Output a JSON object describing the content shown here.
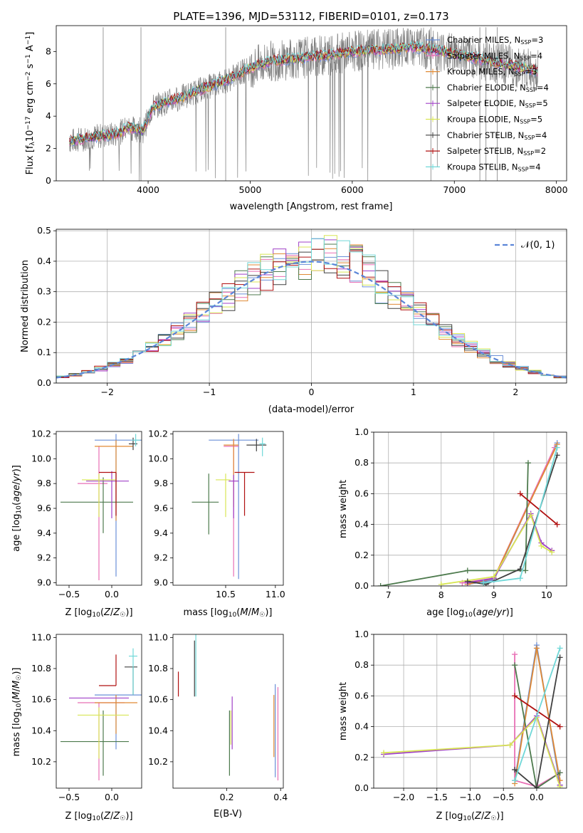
{
  "colors": {
    "Chabrier MILES": "#6a8fd8",
    "Salpeter MILES": "#e86fb5",
    "Kroupa MILES": "#e08a35",
    "Chabrier ELODIE": "#4d7a4d",
    "Salpeter ELODIE": "#a040c8",
    "Kroupa ELODIE": "#d8e655",
    "Chabrier STELIB": "#404040",
    "Salpeter STELIB": "#b01010",
    "Kroupa STELIB": "#70d8d8",
    "data": "#808080",
    "normal": "#5b86d8"
  },
  "chart_data": [
    {
      "id": "spectrum",
      "type": "line",
      "title": "PLATE=1396, MJD=53112, FIBERID=0101, z=0.173",
      "xlabel": "wavelength [Angstrom, rest frame]",
      "ylabel": "Flux [f$_\\lambda$10$^{-17}$ erg cm$^{-2}$ s$^{-1}$ A$^{-1}$]",
      "ylabel_parts": {
        "a": "Flux [f",
        "b": "λ",
        "c": "10",
        "d": "−17",
        "e": " erg cm",
        "f": "−2",
        "g": " s",
        "h": "−1",
        "i": " A",
        "j": "−1",
        "k": "]"
      },
      "xlim": [
        3100,
        8100
      ],
      "ylim": [
        0,
        9.6
      ],
      "xticks": [
        4000,
        5000,
        6000,
        7000,
        8000
      ],
      "yticks": [
        0,
        2,
        4,
        6,
        8
      ],
      "legend": [
        {
          "name": "Chabrier MILES",
          "nssp": "3"
        },
        {
          "name": "Salpeter MILES",
          "nssp": "4"
        },
        {
          "name": "Kroupa MILES",
          "nssp": "3"
        },
        {
          "name": "Chabrier ELODIE",
          "nssp": "4"
        },
        {
          "name": "Salpeter ELODIE",
          "nssp": "5"
        },
        {
          "name": "Kroupa ELODIE",
          "nssp": "5"
        },
        {
          "name": "Chabrier STELIB",
          "nssp": "4"
        },
        {
          "name": "Salpeter STELIB",
          "nssp": "2"
        },
        {
          "name": "Kroupa STELIB",
          "nssp": "4"
        }
      ],
      "legend_sub": "SSP",
      "legend_prefix": "N",
      "model_continuum": [
        [
          3230,
          2.45
        ],
        [
          3500,
          2.75
        ],
        [
          3700,
          2.9
        ],
        [
          3800,
          3.3
        ],
        [
          3950,
          3.1
        ],
        [
          4050,
          4.6
        ],
        [
          4300,
          5.1
        ],
        [
          4500,
          5.6
        ],
        [
          4800,
          6.3
        ],
        [
          5000,
          7.0
        ],
        [
          5200,
          7.4
        ],
        [
          5500,
          7.6
        ],
        [
          5800,
          7.8
        ],
        [
          6000,
          8.0
        ],
        [
          6300,
          8.1
        ],
        [
          6600,
          8.3
        ],
        [
          6900,
          8.0
        ],
        [
          7200,
          7.6
        ],
        [
          7500,
          7.2
        ],
        [
          7820,
          6.8
        ]
      ],
      "data_range": [
        3230,
        7820
      ]
    },
    {
      "id": "residual-hist",
      "type": "line",
      "xlabel": "(data-model)/error",
      "ylabel": "Normed distribution",
      "xlim": [
        -2.5,
        2.5
      ],
      "ylim": [
        0,
        0.505
      ],
      "xticks": [
        -2,
        -1,
        0,
        1,
        2
      ],
      "yticks": [
        0.0,
        0.1,
        0.2,
        0.3,
        0.4,
        0.5
      ],
      "legend": "𝒩(0, 1)",
      "bins": 40,
      "grid": true
    },
    {
      "id": "age-vs-Z",
      "type": "scatter",
      "xlabel": "Z [log10(Z/Z☉)]",
      "ylabel": "age  [log10(age/yr)]",
      "xlim": [
        -0.65,
        0.35
      ],
      "ylim": [
        8.98,
        10.22
      ],
      "xticks": [
        -0.5,
        0.0
      ],
      "yticks": [
        9.0,
        9.2,
        9.4,
        9.6,
        9.8,
        10.0,
        10.2
      ],
      "points": [
        {
          "model": "Chabrier MILES",
          "x": 0.05,
          "y": 10.15,
          "xerr": [
            0.25,
            0.3
          ],
          "yerr": [
            1.1,
            0.05
          ]
        },
        {
          "model": "Salpeter MILES",
          "x": -0.15,
          "y": 9.8,
          "xerr": [
            0.25,
            0.1
          ],
          "yerr": [
            0.78,
            0.3
          ]
        },
        {
          "model": "Kroupa MILES",
          "x": 0.05,
          "y": 10.1,
          "xerr": [
            0.25,
            0.2
          ],
          "yerr": [
            0.6,
            0.05
          ]
        },
        {
          "model": "Chabrier ELODIE",
          "x": -0.1,
          "y": 9.65,
          "xerr": [
            0.5,
            0.35
          ],
          "yerr": [
            0.25,
            0.2
          ]
        },
        {
          "model": "Salpeter ELODIE",
          "x": 0.0,
          "y": 9.82,
          "xerr": [
            0.3,
            0.2
          ],
          "yerr": [
            0.3,
            0.08
          ]
        },
        {
          "model": "Kroupa ELODIE",
          "x": -0.15,
          "y": 9.83,
          "xerr": [
            0.2,
            0.2
          ],
          "yerr": [
            0.3,
            0.05
          ]
        },
        {
          "model": "Chabrier STELIB",
          "x": 0.25,
          "y": 10.12,
          "xerr": [
            0.05,
            0.05
          ],
          "yerr": [
            0.05,
            0.05
          ]
        },
        {
          "model": "Salpeter STELIB",
          "x": 0.05,
          "y": 9.89,
          "xerr": [
            0.2,
            0.0
          ],
          "yerr": [
            0.35,
            0.0
          ]
        },
        {
          "model": "Kroupa STELIB",
          "x": 0.28,
          "y": 10.15,
          "xerr": [
            0.05,
            0.05
          ],
          "yerr": [
            0.05,
            0.05
          ]
        }
      ]
    },
    {
      "id": "age-vs-mass",
      "type": "scatter",
      "xlabel": "mass [log10(M/M☉)]",
      "ylabel": "",
      "xlim": [
        9.97,
        11.08
      ],
      "ylim": [
        8.98,
        10.22
      ],
      "xticks": [
        10.5,
        11.0
      ],
      "yticks": [
        9.0,
        9.2,
        9.4,
        9.6,
        9.8,
        10.0,
        10.2
      ],
      "points": [
        {
          "model": "Chabrier MILES",
          "x": 10.63,
          "y": 10.15,
          "xerr": [
            0.3,
            0.2
          ],
          "yerr": [
            1.12,
            0.05
          ]
        },
        {
          "model": "Salpeter MILES",
          "x": 10.58,
          "y": 10.1,
          "xerr": [
            0.1,
            0.05
          ],
          "yerr": [
            1.05,
            0.05
          ]
        },
        {
          "model": "Kroupa MILES",
          "x": 10.58,
          "y": 10.11,
          "xerr": [
            0.1,
            0.05
          ],
          "yerr": [
            0.5,
            0.05
          ]
        },
        {
          "model": "Chabrier ELODIE",
          "x": 10.33,
          "y": 9.65,
          "xerr": [
            0.17,
            0.1
          ],
          "yerr": [
            0.26,
            0.23
          ]
        },
        {
          "model": "Salpeter ELODIE",
          "x": 10.58,
          "y": 9.82,
          "xerr": [
            0.05,
            0.05
          ],
          "yerr": [
            0.3,
            0.05
          ]
        },
        {
          "model": "Kroupa ELODIE",
          "x": 10.5,
          "y": 9.83,
          "xerr": [
            0.1,
            0.05
          ],
          "yerr": [
            0.3,
            0.05
          ]
        },
        {
          "model": "Chabrier STELIB",
          "x": 10.81,
          "y": 10.11,
          "xerr": [
            0.1,
            0.1
          ],
          "yerr": [
            0.05,
            0.05
          ]
        },
        {
          "model": "Salpeter STELIB",
          "x": 10.69,
          "y": 9.89,
          "xerr": [
            0.1,
            0.1
          ],
          "yerr": [
            0.35,
            0.0
          ]
        },
        {
          "model": "Kroupa STELIB",
          "x": 10.87,
          "y": 10.12,
          "xerr": [
            0.03,
            0.03
          ],
          "yerr": [
            0.1,
            0.05
          ]
        }
      ]
    },
    {
      "id": "mass-weight-vs-age",
      "type": "line",
      "xlabel": "age  [log10(age/yr)]",
      "ylabel": "mass weight",
      "xlim": [
        6.72,
        10.38
      ],
      "ylim": [
        0,
        1.0
      ],
      "xticks": [
        7,
        8,
        9,
        10
      ],
      "yticks": [
        0.0,
        0.2,
        0.4,
        0.6,
        0.8,
        1.0
      ],
      "grid": true,
      "series": [
        {
          "model": "Chabrier MILES",
          "x": [
            8.5,
            9.0,
            10.2
          ],
          "y": [
            0.01,
            0.04,
            0.93
          ]
        },
        {
          "model": "Salpeter MILES",
          "x": [
            8.4,
            9.0,
            10.15
          ],
          "y": [
            0.02,
            0.05,
            0.9
          ]
        },
        {
          "model": "Kroupa MILES",
          "x": [
            8.5,
            9.0,
            10.2
          ],
          "y": [
            0.01,
            0.05,
            0.92
          ]
        },
        {
          "model": "Chabrier ELODIE",
          "x": [
            6.85,
            8.5,
            9.6,
            9.65
          ],
          "y": [
            0.0,
            0.1,
            0.1,
            0.8
          ]
        },
        {
          "model": "Salpeter ELODIE",
          "x": [
            8.5,
            9.0,
            9.7,
            9.9,
            10.1
          ],
          "y": [
            0.02,
            0.05,
            0.47,
            0.28,
            0.23
          ]
        },
        {
          "model": "Kroupa ELODIE",
          "x": [
            8.0,
            9.0,
            9.7,
            9.9,
            10.1
          ],
          "y": [
            0.01,
            0.06,
            0.46,
            0.26,
            0.22
          ]
        },
        {
          "model": "Chabrier STELIB",
          "x": [
            8.5,
            8.85,
            9.5,
            10.2
          ],
          "y": [
            0.03,
            0.01,
            0.11,
            0.85
          ]
        },
        {
          "model": "Salpeter STELIB",
          "x": [
            9.5,
            10.2
          ],
          "y": [
            0.6,
            0.4
          ]
        },
        {
          "model": "Kroupa STELIB",
          "x": [
            8.8,
            9.5,
            10.2
          ],
          "y": [
            0.02,
            0.05,
            0.9
          ]
        }
      ]
    },
    {
      "id": "mass-vs-Z",
      "type": "scatter",
      "xlabel": "Z [log10(Z/Z☉)]",
      "ylabel": "mass [log10(M/M☉)]",
      "xlim": [
        -0.65,
        0.35
      ],
      "ylim": [
        10.03,
        11.02
      ],
      "xticks": [
        -0.5,
        0.0
      ],
      "yticks": [
        10.2,
        10.4,
        10.6,
        10.8,
        11.0
      ],
      "points": [
        {
          "model": "Chabrier MILES",
          "x": 0.05,
          "y": 10.63,
          "xerr": [
            0.25,
            0.3
          ],
          "yerr": [
            0.35,
            0.0
          ]
        },
        {
          "model": "Salpeter MILES",
          "x": -0.15,
          "y": 10.58,
          "xerr": [
            0.25,
            0.3
          ],
          "yerr": [
            0.5,
            0.0
          ]
        },
        {
          "model": "Kroupa MILES",
          "x": 0.05,
          "y": 10.58,
          "xerr": [
            0.25,
            0.25
          ],
          "yerr": [
            0.2,
            0.05
          ]
        },
        {
          "model": "Chabrier ELODIE",
          "x": -0.1,
          "y": 10.33,
          "xerr": [
            0.5,
            0.3
          ],
          "yerr": [
            0.22,
            0.2
          ]
        },
        {
          "model": "Salpeter ELODIE",
          "x": -0.3,
          "y": 10.61,
          "xerr": [
            0.2,
            0.5
          ],
          "yerr": [
            0.0,
            0.0
          ]
        },
        {
          "model": "Kroupa ELODIE",
          "x": -0.15,
          "y": 10.5,
          "xerr": [
            0.25,
            0.35
          ],
          "yerr": [
            0.28,
            0.05
          ]
        },
        {
          "model": "Chabrier STELIB",
          "x": 0.25,
          "y": 10.81,
          "xerr": [
            0.1,
            0.05
          ],
          "yerr": [
            0.18,
            0.0
          ]
        },
        {
          "model": "Salpeter STELIB",
          "x": 0.05,
          "y": 10.69,
          "xerr": [
            0.2,
            0.0
          ],
          "yerr": [
            0.0,
            0.2
          ]
        },
        {
          "model": "Kroupa STELIB",
          "x": 0.25,
          "y": 10.88,
          "xerr": [
            0.05,
            0.05
          ],
          "yerr": [
            0.25,
            0.05
          ]
        }
      ]
    },
    {
      "id": "mass-vs-EBV",
      "type": "scatter",
      "xlabel": "E(B-V)",
      "ylabel": "",
      "xlim": [
        0.0,
        0.41
      ],
      "ylim": [
        10.03,
        11.02
      ],
      "xticks": [
        0.2,
        0.4
      ],
      "yticks": [
        10.2,
        10.4,
        10.6,
        10.8,
        11.0
      ],
      "points": [
        {
          "model": "Salpeter STELIB",
          "x": 0.02,
          "y": 10.7,
          "yerr": [
            0.08,
            0.08
          ]
        },
        {
          "model": "Chabrier STELIB",
          "x": 0.08,
          "y": 10.8,
          "yerr": [
            0.18,
            0.18
          ]
        },
        {
          "model": "Kroupa STELIB",
          "x": 0.085,
          "y": 10.82,
          "yerr": [
            0.2,
            0.2
          ]
        },
        {
          "model": "Chabrier ELODIE",
          "x": 0.21,
          "y": 10.33,
          "yerr": [
            0.22,
            0.2
          ]
        },
        {
          "model": "Salpeter ELODIE",
          "x": 0.22,
          "y": 10.45,
          "yerr": [
            0.17,
            0.17
          ]
        },
        {
          "model": "Kroupa ELODIE",
          "x": 0.215,
          "y": 10.42,
          "yerr": [
            0.11,
            0.11
          ]
        },
        {
          "model": "Chabrier MILES",
          "x": 0.38,
          "y": 10.4,
          "yerr": [
            0.3,
            0.3
          ]
        },
        {
          "model": "Kroupa MILES",
          "x": 0.375,
          "y": 10.43,
          "yerr": [
            0.2,
            0.2
          ]
        },
        {
          "model": "Salpeter MILES",
          "x": 0.39,
          "y": 10.38,
          "yerr": [
            0.3,
            0.3
          ]
        }
      ]
    },
    {
      "id": "mass-weight-vs-Z",
      "type": "line",
      "xlabel": "Z [log10(Z/Z☉)]",
      "ylabel": "mass weight",
      "xlim": [
        -2.45,
        0.45
      ],
      "ylim": [
        0,
        1.0
      ],
      "xticks": [
        -2.0,
        -1.5,
        -1.0,
        -0.5,
        0.0
      ],
      "yticks": [
        0.0,
        0.2,
        0.4,
        0.6,
        0.8,
        1.0
      ],
      "grid": true,
      "series": [
        {
          "model": "Chabrier MILES",
          "x": [
            -0.33,
            0.0,
            0.35
          ],
          "y": [
            0.05,
            0.93,
            0.02
          ]
        },
        {
          "model": "Salpeter MILES",
          "x": [
            -0.33,
            -0.33,
            0.0,
            0.35
          ],
          "y": [
            0.87,
            0.05,
            0.01,
            0.1
          ]
        },
        {
          "model": "Kroupa MILES",
          "x": [
            -0.33,
            0.0,
            0.35
          ],
          "y": [
            0.03,
            0.91,
            0.05
          ]
        },
        {
          "model": "Chabrier ELODIE",
          "x": [
            -0.33,
            0.0,
            0.35
          ],
          "y": [
            0.8,
            0.0,
            0.1
          ]
        },
        {
          "model": "Salpeter ELODIE",
          "x": [
            -2.3,
            -0.4,
            0.0,
            0.35
          ],
          "y": [
            0.22,
            0.28,
            0.47,
            0.02
          ]
        },
        {
          "model": "Kroupa ELODIE",
          "x": [
            -2.3,
            -0.4,
            0.0,
            0.35
          ],
          "y": [
            0.23,
            0.28,
            0.46,
            0.01
          ]
        },
        {
          "model": "Chabrier STELIB",
          "x": [
            -0.33,
            0.0,
            0.35
          ],
          "y": [
            0.12,
            0.0,
            0.85
          ]
        },
        {
          "model": "Salpeter STELIB",
          "x": [
            -0.33,
            0.35
          ],
          "y": [
            0.6,
            0.4
          ]
        },
        {
          "model": "Kroupa STELIB",
          "x": [
            -0.33,
            0.35
          ],
          "y": [
            0.05,
            0.91
          ]
        }
      ]
    }
  ]
}
